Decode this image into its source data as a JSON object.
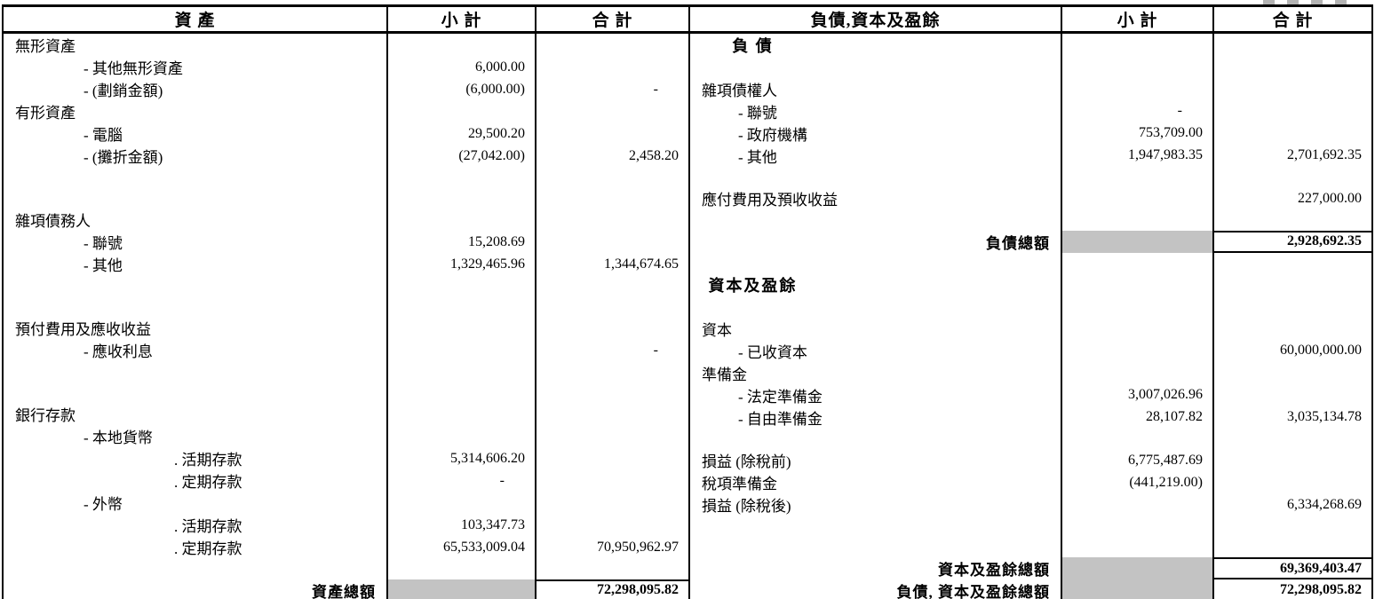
{
  "headers": {
    "assets": "資  產",
    "subtotal_left": "小 計",
    "total_left": "合 計",
    "liabilities": "負債,資本及盈餘",
    "subtotal_right": "小 計",
    "total_right": "合 計"
  },
  "colors": {
    "shade": "#c3c3c3",
    "border": "#000000",
    "background": "#ffffff"
  },
  "assets_rows": [
    {
      "label": "無形資產",
      "cls": "l0",
      "sub": "",
      "tot": ""
    },
    {
      "label": "- 其他無形資產",
      "cls": "l1",
      "sub": "6,000.00",
      "tot": ""
    },
    {
      "label": "- (劃銷金額)",
      "cls": "l1",
      "sub": "(6,000.00)",
      "tot": "-"
    },
    {
      "label": "有形資產",
      "cls": "l0",
      "sub": "",
      "tot": ""
    },
    {
      "label": "- 電腦",
      "cls": "l1",
      "sub": "29,500.20",
      "tot": ""
    },
    {
      "label": "- (攤折金額)",
      "cls": "l1",
      "sub": "(27,042.00)",
      "tot": "2,458.20"
    },
    {
      "label": "",
      "cls": "l0",
      "sub": "",
      "tot": ""
    },
    {
      "label": "",
      "cls": "l0",
      "sub": "",
      "tot": ""
    },
    {
      "label": "雜項債務人",
      "cls": "l0",
      "sub": "",
      "tot": ""
    },
    {
      "label": "- 聯號",
      "cls": "l1",
      "sub": "15,208.69",
      "tot": ""
    },
    {
      "label": "- 其他",
      "cls": "l1",
      "sub": "1,329,465.96",
      "tot": "1,344,674.65"
    },
    {
      "label": "",
      "cls": "l0",
      "sub": "",
      "tot": ""
    },
    {
      "label": "",
      "cls": "l0",
      "sub": "",
      "tot": ""
    },
    {
      "label": "預付費用及應收收益",
      "cls": "l0",
      "sub": "",
      "tot": ""
    },
    {
      "label": "- 應收利息",
      "cls": "l1",
      "sub": "",
      "tot": "-"
    },
    {
      "label": "",
      "cls": "l0",
      "sub": "",
      "tot": ""
    },
    {
      "label": "",
      "cls": "l0",
      "sub": "",
      "tot": ""
    },
    {
      "label": "銀行存款",
      "cls": "l0",
      "sub": "",
      "tot": ""
    },
    {
      "label": "- 本地貨幣",
      "cls": "l1",
      "sub": "",
      "tot": ""
    },
    {
      "label": ". 活期存款",
      "cls": "l2",
      "sub": "5,314,606.20",
      "tot": ""
    },
    {
      "label": ". 定期存款",
      "cls": "l2",
      "sub": "-",
      "tot": ""
    },
    {
      "label": "- 外幣",
      "cls": "l1",
      "sub": "",
      "tot": ""
    },
    {
      "label": ". 活期存款",
      "cls": "l2",
      "sub": "103,347.73",
      "tot": ""
    },
    {
      "label": ". 定期存款",
      "cls": "l2",
      "sub": "65,533,009.04",
      "tot": "70,950,962.97"
    },
    {
      "label": "",
      "cls": "l0",
      "sub": "",
      "tot": ""
    },
    {
      "label": "資產總額",
      "cls": "tl",
      "sub": "",
      "tot": "72,298,095.82",
      "g": true,
      "bold": true,
      "bt": true,
      "bb": true
    }
  ],
  "liabilities_rows": [
    {
      "label": "負  債",
      "cls": "ctr",
      "sub": "",
      "tot": ""
    },
    {
      "label": "",
      "cls": "l0",
      "sub": "",
      "tot": ""
    },
    {
      "label": "雜項債權人",
      "cls": "l0",
      "sub": "",
      "tot": ""
    },
    {
      "label": "- 聯號",
      "cls": "l1r",
      "sub": "-",
      "tot": ""
    },
    {
      "label": "- 政府機構",
      "cls": "l1r",
      "sub": "753,709.00",
      "tot": ""
    },
    {
      "label": "- 其他",
      "cls": "l1r",
      "sub": "1,947,983.35",
      "tot": "2,701,692.35"
    },
    {
      "label": "",
      "cls": "l0",
      "sub": "",
      "tot": ""
    },
    {
      "label": "應付費用及預收收益",
      "cls": "l0",
      "sub": "",
      "tot": "227,000.00"
    },
    {
      "label": "",
      "cls": "l0",
      "sub": "",
      "tot": ""
    },
    {
      "label": "負債總額",
      "cls": "tl",
      "sub": "",
      "tot": "2,928,692.35",
      "g": true,
      "bold": true,
      "bt": true,
      "bb": true
    },
    {
      "label": "",
      "cls": "l0",
      "sub": "",
      "tot": ""
    },
    {
      "label": "資本及盈餘",
      "cls": "ctr",
      "sub": "",
      "tot": ""
    },
    {
      "label": "",
      "cls": "l0",
      "sub": "",
      "tot": ""
    },
    {
      "label": "資本",
      "cls": "l0",
      "sub": "",
      "tot": ""
    },
    {
      "label": "- 已收資本",
      "cls": "l1r",
      "sub": "",
      "tot": "60,000,000.00"
    },
    {
      "label": "準備金",
      "cls": "l0",
      "sub": "",
      "tot": ""
    },
    {
      "label": "- 法定準備金",
      "cls": "l1r",
      "sub": "3,007,026.96",
      "tot": ""
    },
    {
      "label": "- 自由準備金",
      "cls": "l1r",
      "sub": "28,107.82",
      "tot": "3,035,134.78"
    },
    {
      "label": "",
      "cls": "l0",
      "sub": "",
      "tot": ""
    },
    {
      "label": "損益 (除稅前)",
      "cls": "l0",
      "sub": "6,775,487.69",
      "tot": ""
    },
    {
      "label": "稅項準備金",
      "cls": "l0",
      "sub": "(441,219.00)",
      "tot": ""
    },
    {
      "label": "損益 (除稅後)",
      "cls": "l0",
      "sub": "",
      "tot": "6,334,268.69"
    },
    {
      "label": "",
      "cls": "l0",
      "sub": "",
      "tot": ""
    },
    {
      "label": "",
      "cls": "l0",
      "sub": "",
      "tot": ""
    },
    {
      "label": "資本及盈餘總額",
      "cls": "tl",
      "sub": "",
      "tot": "69,369,403.47",
      "g": true,
      "bold": true,
      "bt": true,
      "bb": true
    },
    {
      "label": "負債, 資本及盈餘總額",
      "cls": "tl",
      "sub": "",
      "tot": "72,298,095.82",
      "g": true,
      "bold": true,
      "bb": true
    }
  ]
}
